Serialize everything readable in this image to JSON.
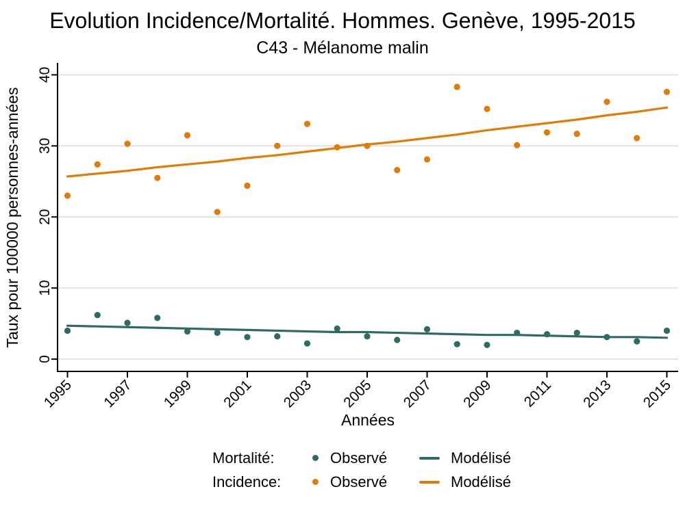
{
  "title": "Evolution Incidence/Mortalité. Hommes. Genève, 1995-2015",
  "subtitle": "C43 - Mélanome malin",
  "colors": {
    "incidence": "#E07C05",
    "mortality": "#2D6B64",
    "grid": "#DADADA",
    "axis": "#000000"
  },
  "legend": {
    "rows": [
      {
        "label": "Mortalité:",
        "observed": "Observé",
        "modelled": "Modélisé",
        "color_key": "mortality"
      },
      {
        "label": "Incidence:",
        "observed": "Observé",
        "modelled": "Modélisé",
        "color_key": "incidence"
      }
    ]
  },
  "chart_data": {
    "type": "scatter",
    "title": "Evolution Incidence/Mortalité. Hommes. Genève, 1995-2015",
    "subtitle": "C43 - Mélanome malin",
    "xlabel": "Années",
    "ylabel": "Taux pour 100000 personnes-années",
    "grid": true,
    "legend_position": "bottom",
    "ylim": [
      0,
      40
    ],
    "y_ticks": [
      0,
      10,
      20,
      30,
      40
    ],
    "x_ticks": [
      1995,
      1997,
      1999,
      2001,
      2003,
      2005,
      2007,
      2009,
      2011,
      2013,
      2015
    ],
    "x": [
      1995,
      1996,
      1997,
      1998,
      1999,
      2000,
      2001,
      2002,
      2003,
      2004,
      2005,
      2006,
      2007,
      2008,
      2009,
      2010,
      2011,
      2012,
      2013,
      2014,
      2015
    ],
    "series": [
      {
        "id": "mortality-observed",
        "name": "Mortalité Observé",
        "style": "points",
        "color": "mortality",
        "values": [
          4.0,
          6.2,
          5.1,
          5.8,
          3.9,
          3.7,
          3.1,
          3.2,
          2.2,
          4.3,
          3.2,
          2.7,
          4.2,
          2.1,
          2.0,
          3.7,
          3.5,
          3.7,
          3.1,
          2.5,
          4.0
        ]
      },
      {
        "id": "mortality-modelled",
        "name": "Mortalité Modélisé",
        "style": "line",
        "color": "mortality",
        "values": [
          4.7,
          4.6,
          4.5,
          4.4,
          4.3,
          4.2,
          4.1,
          4.0,
          3.9,
          3.8,
          3.8,
          3.7,
          3.6,
          3.5,
          3.4,
          3.4,
          3.3,
          3.2,
          3.1,
          3.1,
          3.0
        ]
      },
      {
        "id": "incidence-observed",
        "name": "Incidence Observé",
        "style": "points",
        "color": "incidence",
        "values": [
          23.0,
          27.4,
          30.3,
          25.5,
          31.5,
          20.7,
          24.4,
          30.0,
          33.1,
          29.8,
          30.0,
          26.6,
          28.1,
          38.3,
          35.2,
          30.1,
          31.9,
          31.7,
          36.2,
          31.1,
          37.6
        ]
      },
      {
        "id": "incidence-modelled",
        "name": "Incidence Modélisé",
        "style": "line",
        "color": "incidence",
        "values": [
          25.7,
          26.1,
          26.5,
          27.0,
          27.4,
          27.8,
          28.3,
          28.7,
          29.2,
          29.7,
          30.2,
          30.6,
          31.1,
          31.6,
          32.2,
          32.7,
          33.2,
          33.7,
          34.3,
          34.8,
          35.4
        ]
      }
    ]
  }
}
